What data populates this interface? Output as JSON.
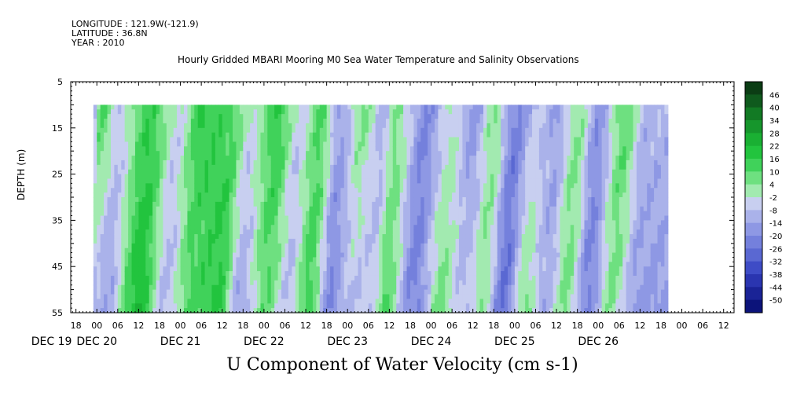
{
  "header": {
    "longitude": "LONGITUDE : 121.9W(-121.9)",
    "latitude": "LATITUDE : 36.8N",
    "year": "YEAR : 2010"
  },
  "chart_data": {
    "type": "heatmap",
    "title": "Hourly Gridded MBARI Mooring M0 Sea Water Temperature and Salinity Observations",
    "xlabel": "U Component of Water Velocity (cm s-1)",
    "ylabel": "DEPTH (m)",
    "ylim": [
      5,
      55
    ],
    "y_ticks": [
      5,
      15,
      25,
      35,
      45,
      55
    ],
    "data_depth_range": [
      10,
      55
    ],
    "x_hour_ticks": [
      "18",
      "00",
      "06",
      "12",
      "18",
      "00",
      "06",
      "12",
      "18",
      "00",
      "06",
      "12",
      "18",
      "00",
      "06",
      "12",
      "18",
      "00",
      "06",
      "12",
      "18",
      "00",
      "06",
      "12",
      "18",
      "00",
      "06",
      "12",
      "18",
      "00",
      "06",
      "12"
    ],
    "x_day_labels": [
      "DEC 19",
      "DEC 20",
      "DEC 21",
      "DEC 22",
      "DEC 23",
      "DEC 24",
      "DEC 25",
      "DEC 26"
    ],
    "colorbar_levels": [
      "46",
      "40",
      "34",
      "28",
      "22",
      "16",
      "10",
      "4",
      "-2",
      "-8",
      "-14",
      "-20",
      "-26",
      "-32",
      "-38",
      "-44",
      "-50"
    ],
    "colorbar_colors": [
      "#0b3d14",
      "#0f5a1d",
      "#127a24",
      "#16962c",
      "#1ab033",
      "#22c43e",
      "#40d25a",
      "#6ee080",
      "#a2eab0",
      "#c8cff0",
      "#aab2ea",
      "#8e98e4",
      "#7480dc",
      "#5a68d2",
      "#3e4cc6",
      "#2a35b0",
      "#1a2396",
      "#0c137a"
    ],
    "series": [
      {
        "day_hour": "DEC 19 23",
        "u_surface": -8,
        "u_bottom": -20
      },
      {
        "day_hour": "DEC 20 01",
        "u_surface": 12,
        "u_bottom": -10
      },
      {
        "day_hour": "DEC 20 06",
        "u_surface": -6,
        "u_bottom": -14
      },
      {
        "day_hour": "DEC 20 15",
        "u_surface": 14,
        "u_bottom": 22
      },
      {
        "day_hour": "DEC 20 23",
        "u_surface": -4,
        "u_bottom": -10
      },
      {
        "day_hour": "DEC 21 06",
        "u_surface": 16,
        "u_bottom": 10
      },
      {
        "day_hour": "DEC 21 14",
        "u_surface": 12,
        "u_bottom": 18
      },
      {
        "day_hour": "DEC 21 20",
        "u_surface": -2,
        "u_bottom": -14
      },
      {
        "day_hour": "DEC 22 04",
        "u_surface": 16,
        "u_bottom": 8
      },
      {
        "day_hour": "DEC 22 10",
        "u_surface": -6,
        "u_bottom": -8
      },
      {
        "day_hour": "DEC 22 16",
        "u_surface": 10,
        "u_bottom": 14
      },
      {
        "day_hour": "DEC 22 22",
        "u_surface": -14,
        "u_bottom": -20
      },
      {
        "day_hour": "DEC 23 04",
        "u_surface": 6,
        "u_bottom": -10
      },
      {
        "day_hour": "DEC 23 10",
        "u_surface": -10,
        "u_bottom": -6
      },
      {
        "day_hour": "DEC 23 14",
        "u_surface": 4,
        "u_bottom": 10
      },
      {
        "day_hour": "DEC 23 22",
        "u_surface": -20,
        "u_bottom": -22
      },
      {
        "day_hour": "DEC 24 06",
        "u_surface": -2,
        "u_bottom": 6
      },
      {
        "day_hour": "DEC 24 12",
        "u_surface": -16,
        "u_bottom": -8
      },
      {
        "day_hour": "DEC 24 18",
        "u_surface": 4,
        "u_bottom": 2
      },
      {
        "day_hour": "DEC 25 00",
        "u_surface": -22,
        "u_bottom": -26
      },
      {
        "day_hour": "DEC 25 06",
        "u_surface": -8,
        "u_bottom": 6
      },
      {
        "day_hour": "DEC 25 12",
        "u_surface": -14,
        "u_bottom": -12
      },
      {
        "day_hour": "DEC 25 18",
        "u_surface": 4,
        "u_bottom": 6
      },
      {
        "day_hour": "DEC 26 00",
        "u_surface": -18,
        "u_bottom": -22
      },
      {
        "day_hour": "DEC 26 07",
        "u_surface": 10,
        "u_bottom": 4
      },
      {
        "day_hour": "DEC 26 14",
        "u_surface": -10,
        "u_bottom": -16
      }
    ]
  }
}
